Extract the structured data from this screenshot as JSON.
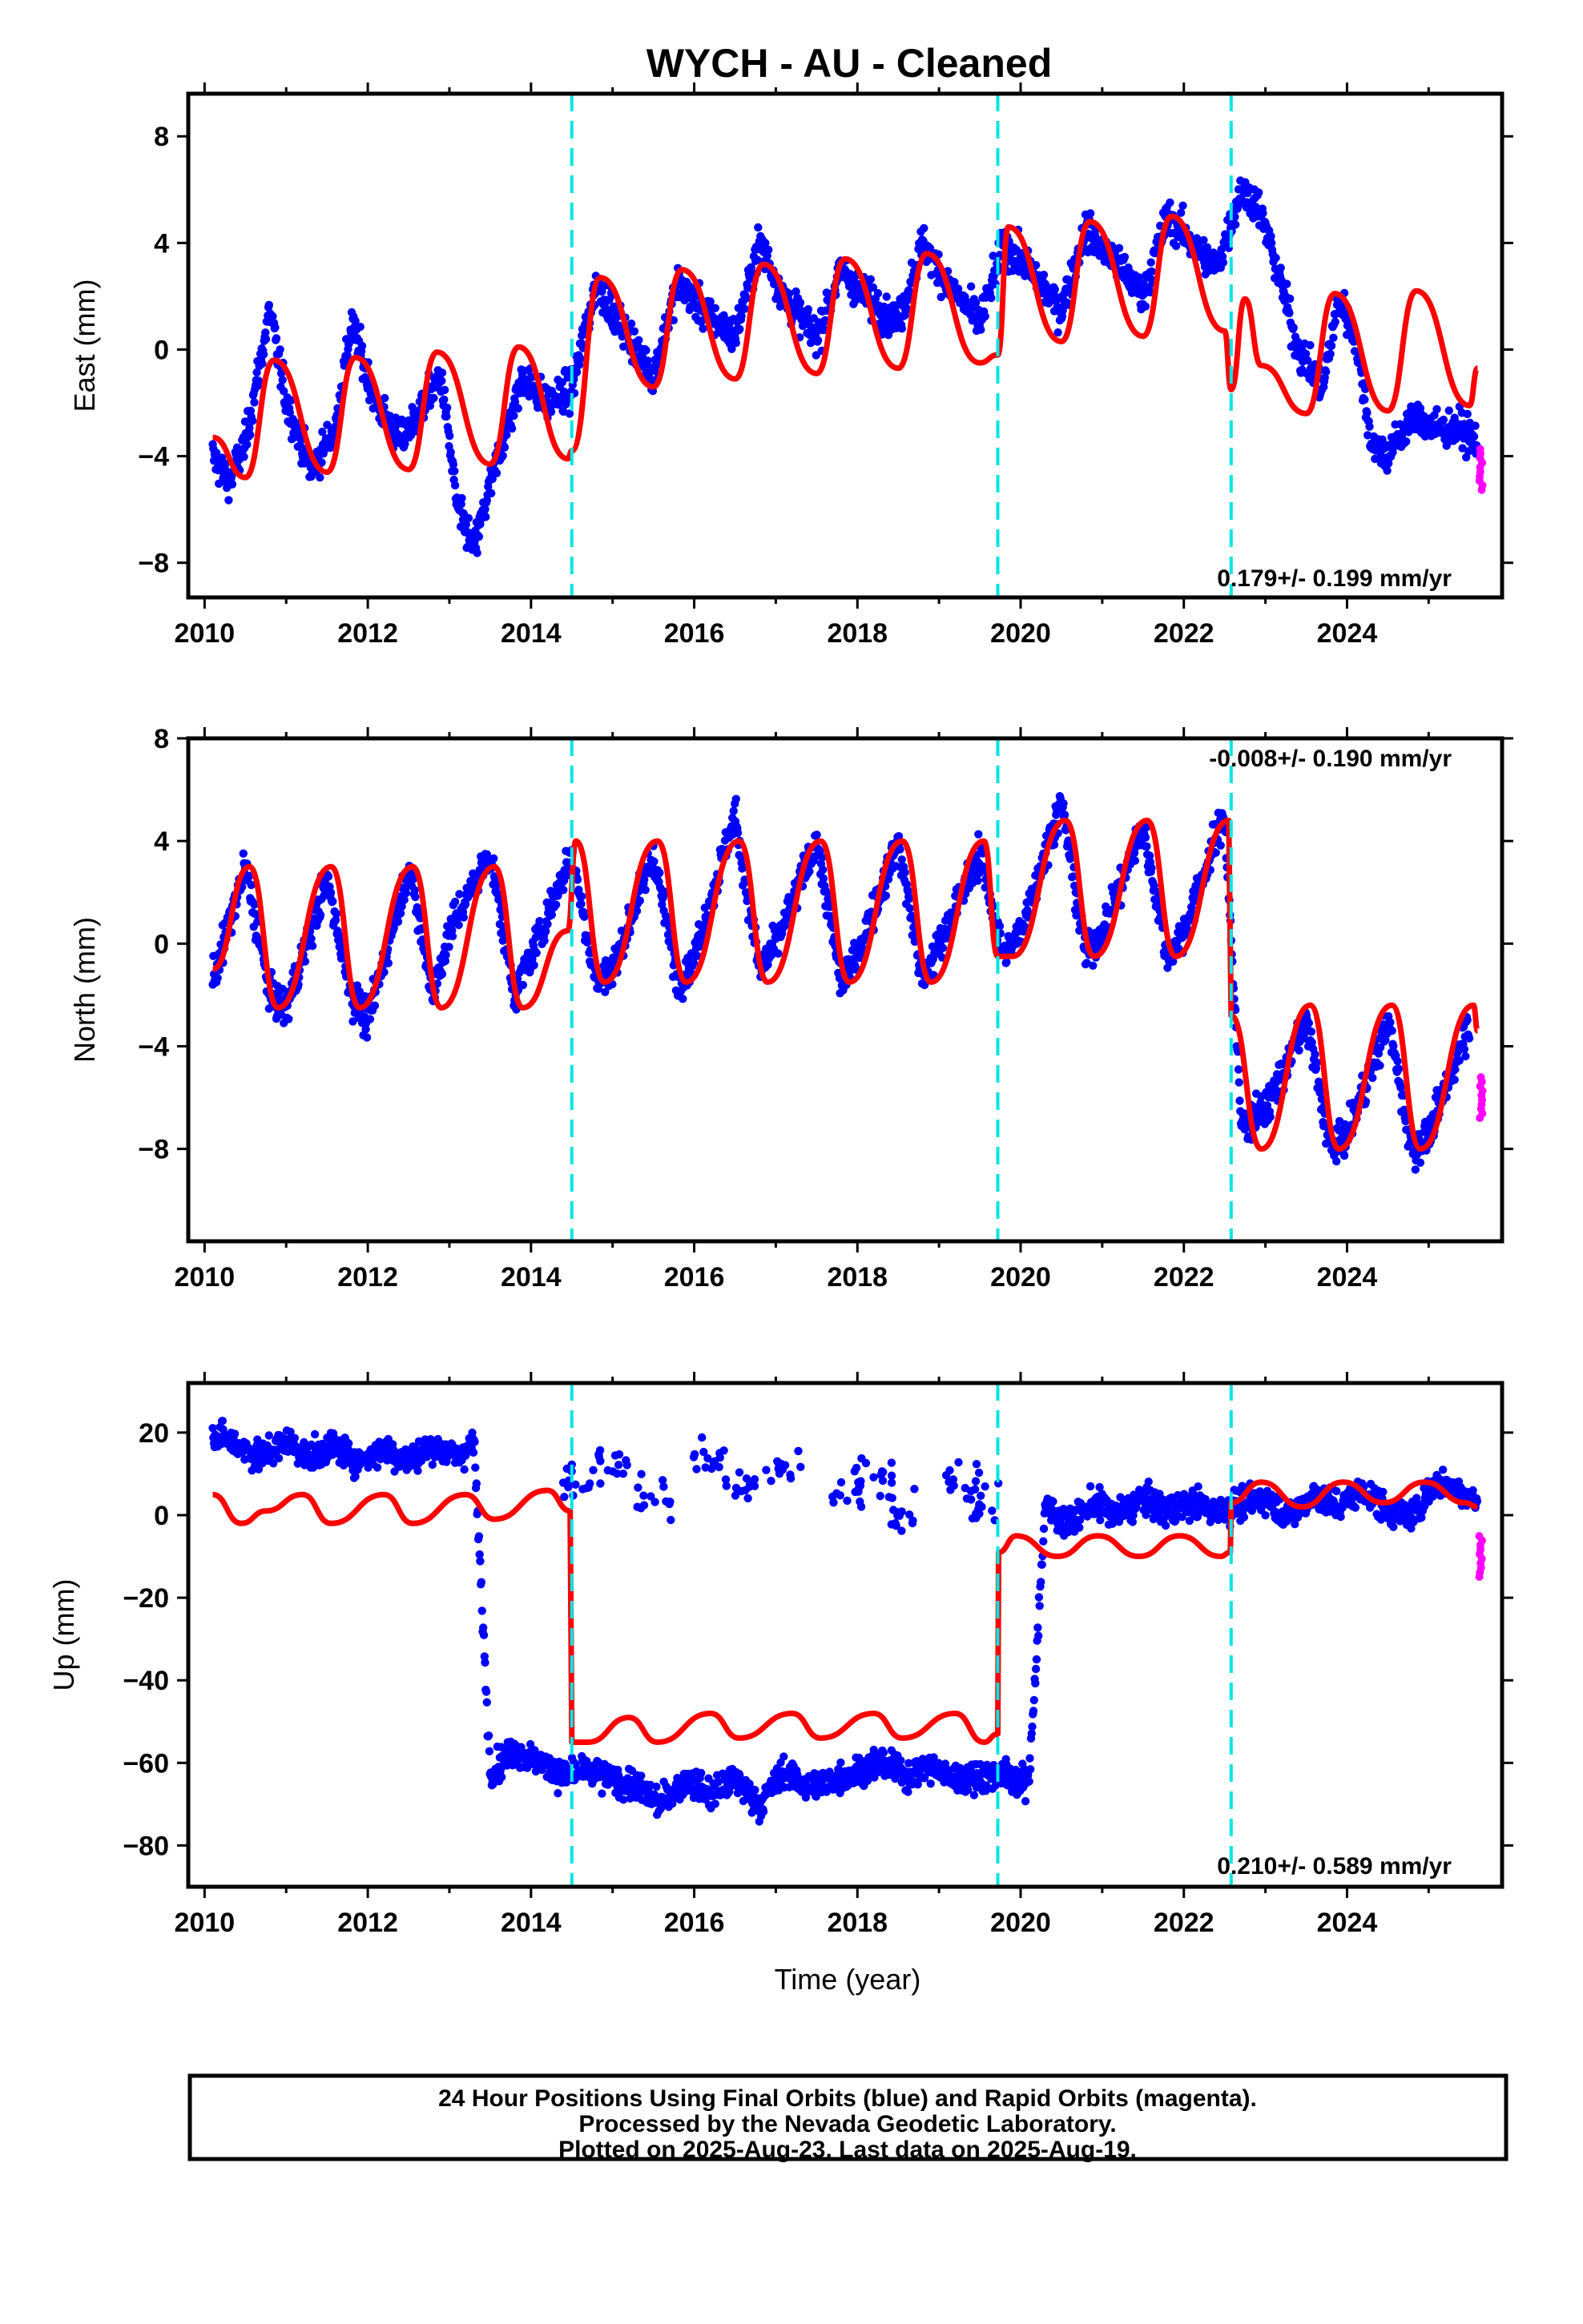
{
  "title": "WYCH  - AU - Cleaned",
  "xlabel": "Time (year)",
  "x_ticks": [
    "2010",
    "2012",
    "2014",
    "2016",
    "2018",
    "2020",
    "2022",
    "2024"
  ],
  "colors": {
    "final": "#0000ff",
    "rapid": "#ff00ff",
    "model": "#ff0000",
    "break": "#00e5e5",
    "frame": "#000000"
  },
  "footer": {
    "line1": "24 Hour Positions Using Final Orbits (blue) and Rapid Orbits (magenta).",
    "line2": "Processed by the Nevada Geodetic Laboratory.",
    "line3": "Plotted on 2025-Aug-23. Last data on 2025-Aug-19."
  },
  "chart_data": [
    {
      "type": "scatter",
      "component": "east",
      "ylabel": "East (mm)",
      "rate_text": "0.179+/- 0.199 mm/yr",
      "rate_position": "bottom-right",
      "xlim": [
        2009.8,
        2025.9
      ],
      "ylim": [
        -9.3,
        9.6
      ],
      "y_ticks": [
        -8,
        -4,
        0,
        4,
        8
      ],
      "breaks": [
        2014.5,
        2019.72,
        2022.58
      ],
      "series": [
        {
          "role": "final_orbits",
          "approx_daily": true,
          "x": [
            2010.1,
            2010.3,
            2010.5,
            2010.8,
            2011.0,
            2011.3,
            2011.6,
            2011.8,
            2012.1,
            2012.4,
            2012.6,
            2012.9,
            2013.1,
            2013.3,
            2013.6,
            2013.9,
            2014.2,
            2014.5,
            2014.8,
            2015.1,
            2015.5,
            2015.8,
            2016.1,
            2016.5,
            2016.8,
            2017.1,
            2017.5,
            2017.8,
            2018.1,
            2018.5,
            2018.8,
            2019.1,
            2019.5,
            2019.8,
            2020.1,
            2020.5,
            2020.8,
            2021.1,
            2021.5,
            2021.8,
            2022.1,
            2022.4,
            2022.7,
            2022.9,
            2023.1,
            2023.4,
            2023.7,
            2023.9,
            2024.1,
            2024.3,
            2024.5,
            2024.8,
            2025.1,
            2025.4,
            2025.6
          ],
          "y": [
            -4.0,
            -5.0,
            -3.5,
            1.5,
            -2.0,
            -4.5,
            -3.0,
            1.0,
            -2.0,
            -3.5,
            -2.5,
            -1.0,
            -6.0,
            -7.5,
            -4.0,
            -1.0,
            -2.0,
            -1.5,
            2.5,
            1.0,
            -1.0,
            2.5,
            1.5,
            0.5,
            4.0,
            2.0,
            0.5,
            3.0,
            2.0,
            1.0,
            4.0,
            2.5,
            1.0,
            4.0,
            3.0,
            1.5,
            4.5,
            3.5,
            2.0,
            5.0,
            4.0,
            3.0,
            6.0,
            5.5,
            3.5,
            0.0,
            -1.5,
            2.0,
            0.5,
            -3.5,
            -4.0,
            -2.5,
            -3.0,
            -3.0,
            -3.5
          ]
        },
        {
          "role": "model",
          "x": [
            2010.1,
            2010.5,
            2010.85,
            2011.5,
            2011.85,
            2012.5,
            2012.85,
            2013.5,
            2013.85,
            2014.45,
            2014.5,
            2014.85,
            2015.5,
            2015.85,
            2016.5,
            2016.85,
            2017.5,
            2017.85,
            2018.5,
            2018.85,
            2019.5,
            2019.72,
            2019.85,
            2020.5,
            2020.85,
            2021.5,
            2021.85,
            2022.5,
            2022.58,
            2022.75,
            2022.95,
            2023.5,
            2023.85,
            2024.5,
            2024.85,
            2025.5,
            2025.6
          ],
          "y": [
            -3.3,
            -4.8,
            -0.4,
            -4.6,
            -0.3,
            -4.5,
            -0.1,
            -4.3,
            0.1,
            -4.1,
            -3.8,
            2.7,
            -1.4,
            3.0,
            -1.1,
            3.2,
            -0.9,
            3.4,
            -0.7,
            3.6,
            -0.5,
            -0.2,
            4.6,
            0.3,
            4.8,
            0.5,
            5.0,
            0.7,
            -1.5,
            1.9,
            -0.6,
            -2.4,
            2.1,
            -2.3,
            2.2,
            -2.1,
            -0.7
          ]
        },
        {
          "role": "rapid_orbits",
          "x": [
            2025.62
          ],
          "y": [
            -4.5
          ]
        }
      ]
    },
    {
      "type": "scatter",
      "component": "north",
      "ylabel": "North (mm)",
      "rate_text": "-0.008+/- 0.190 mm/yr",
      "rate_position": "top-right",
      "xlim": [
        2009.8,
        2025.9
      ],
      "ylim": [
        -11.6,
        8.0
      ],
      "y_ticks": [
        -8,
        -4,
        0,
        4,
        8
      ],
      "breaks": [
        2014.5,
        2019.72,
        2022.58
      ],
      "series": [
        {
          "role": "final_orbits",
          "approx_daily": true,
          "x": [
            2010.1,
            2010.5,
            2010.8,
            2011.0,
            2011.5,
            2011.8,
            2012.0,
            2012.5,
            2012.8,
            2013.0,
            2013.5,
            2013.8,
            2014.0,
            2014.5,
            2014.8,
            2015.0,
            2015.5,
            2015.8,
            2016.0,
            2016.5,
            2016.8,
            2017.0,
            2017.5,
            2017.8,
            2018.0,
            2018.5,
            2018.8,
            2019.0,
            2019.5,
            2019.8,
            2020.0,
            2020.5,
            2020.8,
            2021.0,
            2021.5,
            2021.8,
            2022.0,
            2022.5,
            2022.7,
            2023.0,
            2023.5,
            2023.8,
            2024.0,
            2024.5,
            2024.8,
            2025.0,
            2025.5
          ],
          "y": [
            -1.5,
            3.0,
            -2.0,
            -2.5,
            2.5,
            -2.0,
            -3.0,
            3.0,
            -2.0,
            0.5,
            3.5,
            -2.0,
            -0.5,
            3.5,
            -1.5,
            -1.0,
            3.5,
            -1.5,
            -0.5,
            5.0,
            -1.0,
            0.0,
            4.0,
            -1.5,
            -0.5,
            4.0,
            -1.5,
            0.0,
            3.5,
            -0.5,
            0.5,
            5.5,
            -0.5,
            0.5,
            4.5,
            -0.5,
            0.5,
            5.0,
            -7.0,
            -6.5,
            -3.0,
            -8.0,
            -7.5,
            -3.0,
            -8.0,
            -7.5,
            -3.0
          ]
        },
        {
          "role": "model",
          "x": [
            2010.1,
            2010.55,
            2010.9,
            2011.55,
            2011.9,
            2012.55,
            2012.9,
            2013.55,
            2013.9,
            2014.45,
            2014.55,
            2014.9,
            2015.55,
            2015.9,
            2016.55,
            2016.9,
            2017.55,
            2017.9,
            2018.55,
            2018.9,
            2019.55,
            2019.72,
            2019.9,
            2020.55,
            2020.9,
            2021.55,
            2021.9,
            2022.55,
            2022.58,
            2022.95,
            2023.55,
            2023.9,
            2024.55,
            2024.9,
            2025.55,
            2025.6
          ],
          "y": [
            -1.0,
            3.0,
            -2.5,
            3.0,
            -2.5,
            3.0,
            -2.5,
            3.0,
            -2.5,
            0.5,
            4.0,
            -1.5,
            4.0,
            -1.5,
            4.0,
            -1.5,
            4.0,
            -1.5,
            4.0,
            -1.5,
            4.0,
            -0.5,
            -0.5,
            4.8,
            -0.5,
            4.8,
            -0.5,
            4.8,
            -2.8,
            -8.0,
            -2.4,
            -8.0,
            -2.4,
            -8.0,
            -2.4,
            -3.4
          ]
        },
        {
          "role": "rapid_orbits",
          "x": [
            2025.62
          ],
          "y": [
            -6.0
          ]
        }
      ]
    },
    {
      "type": "scatter",
      "component": "up",
      "ylabel": "Up (mm)",
      "rate_text": "0.210+/- 0.589 mm/yr",
      "rate_position": "bottom-right",
      "xlim": [
        2009.8,
        2025.9
      ],
      "ylim": [
        -90,
        32
      ],
      "y_ticks": [
        -80,
        -60,
        -40,
        -20,
        0,
        20
      ],
      "breaks": [
        2014.5,
        2019.72,
        2022.58
      ],
      "series": [
        {
          "role": "final_orbits",
          "approx_daily": true,
          "x": [
            2010.1,
            2010.4,
            2010.7,
            2011.0,
            2011.3,
            2011.6,
            2011.9,
            2012.2,
            2012.5,
            2012.8,
            2013.1,
            2013.3,
            2013.5,
            2013.8,
            2014.1,
            2014.4,
            2014.7,
            2015.0,
            2015.3,
            2015.6,
            2015.9,
            2016.2,
            2016.5,
            2016.8,
            2017.1,
            2017.4,
            2017.7,
            2018.0,
            2018.3,
            2018.6,
            2018.9,
            2019.2,
            2019.5,
            2019.8,
            2020.1,
            2020.3,
            2020.6,
            2020.9,
            2021.2,
            2021.5,
            2021.8,
            2022.1,
            2022.4,
            2022.7,
            2023.0,
            2023.3,
            2023.6,
            2023.9,
            2024.2,
            2024.5,
            2024.8,
            2025.1,
            2025.4,
            2025.6
          ],
          "y": [
            20,
            17,
            14,
            18,
            14,
            17,
            13,
            16,
            13,
            17,
            14,
            18,
            -62,
            -57,
            -60,
            -63,
            -62,
            -64,
            -66,
            -70,
            -64,
            -68,
            -64,
            -70,
            -62,
            -66,
            -64,
            -62,
            -60,
            -63,
            -61,
            -64,
            -63,
            -63,
            -65,
            2,
            -2,
            3,
            0,
            4,
            1,
            3,
            1,
            3,
            4,
            0,
            5,
            2,
            6,
            1,
            0,
            8,
            6,
            3
          ]
        },
        {
          "role": "final_orbits_sparse_upper_branch",
          "x": [
            2014.6,
            2015.0,
            2015.5,
            2016.2,
            2016.6,
            2017.1,
            2017.9,
            2018.2,
            2018.6,
            2019.3,
            2019.6
          ],
          "y": [
            8,
            12,
            5,
            14,
            6,
            12,
            5,
            10,
            2,
            8,
            3
          ]
        },
        {
          "role": "model",
          "x": [
            2010.1,
            2010.45,
            2010.75,
            2011.2,
            2011.55,
            2012.2,
            2012.55,
            2013.2,
            2013.55,
            2014.2,
            2014.48,
            2014.5,
            2014.7,
            2015.2,
            2015.55,
            2016.2,
            2016.55,
            2017.2,
            2017.55,
            2018.2,
            2018.55,
            2019.2,
            2019.55,
            2019.72,
            2019.73,
            2019.95,
            2020.45,
            2020.95,
            2021.45,
            2021.95,
            2022.45,
            2022.57,
            2022.58,
            2022.95,
            2023.45,
            2023.95,
            2024.45,
            2024.95,
            2025.45,
            2025.6
          ],
          "y": [
            5,
            -2,
            1,
            5,
            -2,
            5,
            -2,
            5,
            -1,
            6,
            1,
            -55,
            -55,
            -49,
            -55,
            -48,
            -54,
            -48,
            -54,
            -48,
            -54,
            -48,
            -55,
            -53,
            -9,
            -5,
            -10,
            -5,
            -10,
            -5,
            -10,
            -9,
            3,
            8,
            2,
            8,
            3,
            8,
            3,
            2
          ]
        },
        {
          "role": "rapid_orbits",
          "x": [
            2025.62
          ],
          "y": [
            -10
          ]
        }
      ]
    }
  ]
}
